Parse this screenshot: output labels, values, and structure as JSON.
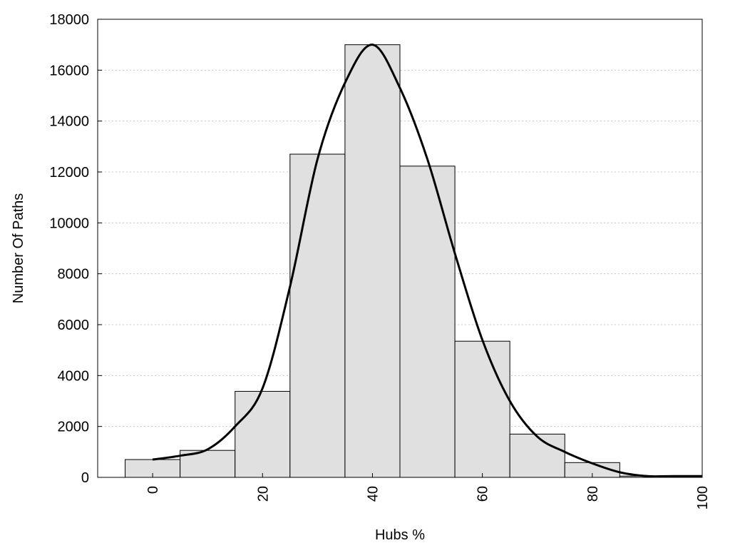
{
  "chart_data": {
    "type": "bar",
    "title": "",
    "xlabel": "Hubs %",
    "ylabel": "Number Of Paths",
    "xlim": [
      -10,
      100
    ],
    "ylim": [
      0,
      18000
    ],
    "x_ticks": [
      0,
      20,
      40,
      60,
      80,
      100
    ],
    "y_ticks": [
      0,
      2000,
      4000,
      6000,
      8000,
      10000,
      12000,
      14000,
      16000,
      18000
    ],
    "grid": true,
    "bin_width": 10,
    "categories": [
      0,
      10,
      20,
      30,
      40,
      50,
      60,
      70,
      80,
      90
    ],
    "values": [
      700,
      1060,
      3380,
      12700,
      17000,
      12230,
      5350,
      1700,
      580,
      50
    ],
    "fit_curve": {
      "x": [
        0,
        5,
        10,
        15,
        20,
        25,
        30,
        35,
        40,
        45,
        50,
        55,
        60,
        65,
        70,
        75,
        80,
        85,
        90,
        95,
        100
      ],
      "y": [
        700,
        850,
        1100,
        2000,
        3500,
        7500,
        12500,
        15500,
        17000,
        15300,
        12500,
        8800,
        5400,
        3000,
        1600,
        1000,
        550,
        200,
        50,
        50,
        50
      ]
    },
    "colors": {
      "bar_fill": "#e0e0e0",
      "bar_stroke": "#000000",
      "curve": "#000000"
    }
  }
}
